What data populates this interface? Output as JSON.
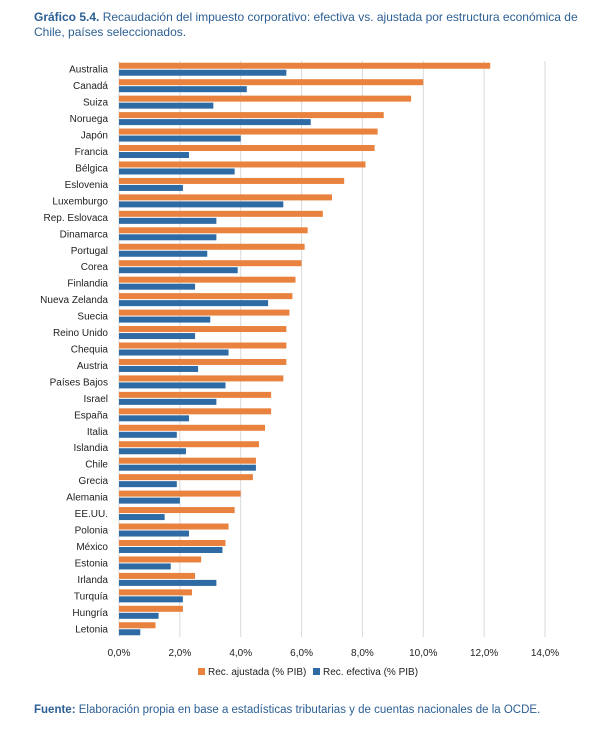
{
  "header": {
    "label": "Gráfico 5.4.",
    "text": "Recaudación del impuesto corporativo: efectiva vs. ajustada por estructura económica de Chile, países seleccionados."
  },
  "footer": {
    "label": "Fuente:",
    "text": "Elaboración propia en base a estadísticas tributarias y de cuentas nacionales de la OCDE."
  },
  "colors": {
    "adjusted": "#e8823e",
    "effective": "#2e6aa3",
    "grid": "#d9d9d9",
    "text": "#222222"
  },
  "chart_data": {
    "type": "bar",
    "orientation": "horizontal",
    "categories": [
      "Australia",
      "Canadá",
      "Suiza",
      "Noruega",
      "Japón",
      "Francia",
      "Bélgica",
      "Eslovenia",
      "Luxemburgo",
      "Rep. Eslovaca",
      "Dinamarca",
      "Portugal",
      "Corea",
      "Finlandia",
      "Nueva Zelanda",
      "Suecia",
      "Reino Unido",
      "Chequia",
      "Austria",
      "Países Bajos",
      "Israel",
      "España",
      "Italia",
      "Islandia",
      "Chile",
      "Grecia",
      "Alemania",
      "EE.UU.",
      "Polonia",
      "México",
      "Estonia",
      "Irlanda",
      "Turquía",
      "Hungría",
      "Letonia"
    ],
    "series": [
      {
        "name": "Rec. ajustada (% PIB)",
        "values": [
          12.2,
          10.0,
          9.6,
          8.7,
          8.5,
          8.4,
          8.1,
          7.4,
          7.0,
          6.7,
          6.2,
          6.1,
          6.0,
          5.8,
          5.7,
          5.6,
          5.5,
          5.5,
          5.5,
          5.4,
          5.0,
          5.0,
          4.8,
          4.6,
          4.5,
          4.4,
          4.0,
          3.8,
          3.6,
          3.5,
          2.7,
          2.5,
          2.4,
          2.1,
          1.2
        ]
      },
      {
        "name": "Rec. efectiva (% PIB)",
        "values": [
          5.5,
          4.2,
          3.1,
          6.3,
          4.0,
          2.3,
          3.8,
          2.1,
          5.4,
          3.2,
          3.2,
          2.9,
          3.9,
          2.5,
          4.9,
          3.0,
          2.5,
          3.6,
          2.6,
          3.5,
          3.2,
          2.3,
          1.9,
          2.2,
          4.5,
          1.9,
          2.0,
          1.5,
          2.3,
          3.4,
          1.7,
          3.2,
          2.1,
          1.3,
          0.7
        ]
      }
    ],
    "xlim": [
      0,
      14
    ],
    "xticks": [
      "0,0%",
      "2,0%",
      "4,0%",
      "6,0%",
      "8,0%",
      "10,0%",
      "12,0%",
      "14,0%"
    ],
    "grid": true,
    "legend_position": "bottom"
  }
}
